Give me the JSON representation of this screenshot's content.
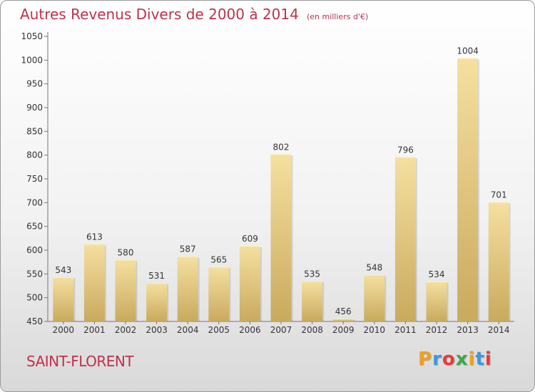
{
  "header": {
    "title": "Autres Revenus Divers de 2000 à 2014",
    "subtitle": "(en milliers d'€)"
  },
  "footer": {
    "commune": "SAINT-FLORENT",
    "logo_letters": [
      "P",
      "r",
      "o",
      "x",
      "i",
      "t",
      "i"
    ]
  },
  "colors": {
    "title": "#c0304a",
    "bar_light": "#f5e0a0",
    "bar_dark": "#c9aa5e",
    "logo": [
      "#f0a020",
      "#3a9ad9",
      "#e83a3a",
      "#3aa84a",
      "#f0a020",
      "#3a9ad9",
      "#e83a3a"
    ]
  },
  "chart_data": {
    "type": "bar",
    "title": "Autres Revenus Divers de 2000 à 2014",
    "subtitle": "(en milliers d'€)",
    "categories": [
      "2000",
      "2001",
      "2002",
      "2003",
      "2004",
      "2005",
      "2006",
      "2007",
      "2008",
      "2009",
      "2010",
      "2011",
      "2012",
      "2013",
      "2014"
    ],
    "values": [
      543,
      613,
      580,
      531,
      587,
      565,
      609,
      802,
      535,
      456,
      548,
      796,
      534,
      1004,
      701
    ],
    "ylim": [
      450,
      1050
    ],
    "yticks": [
      450,
      500,
      550,
      600,
      650,
      700,
      750,
      800,
      850,
      900,
      950,
      1000,
      1050
    ],
    "grid": false,
    "data_labels": true
  }
}
